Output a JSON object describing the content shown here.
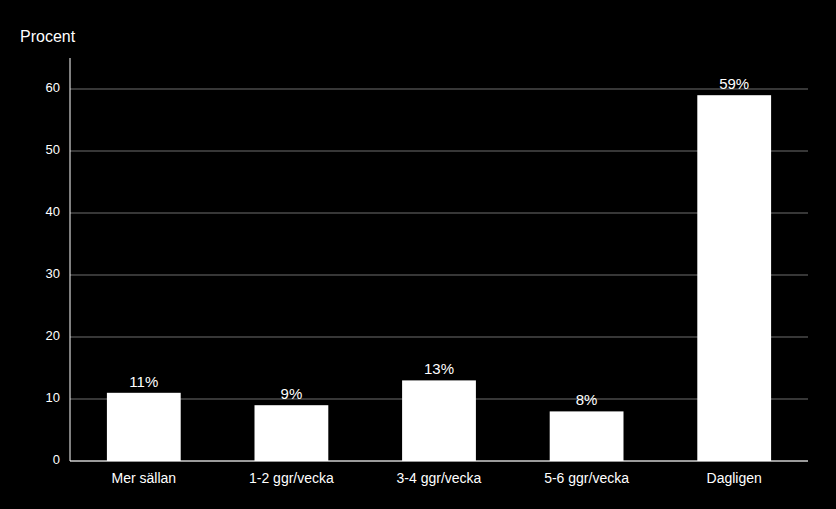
{
  "chart_data": {
    "type": "bar",
    "y_label": "Procent",
    "categories": [
      "Mer sällan",
      "1-2 ggr/vecka",
      "3-4 ggr/vecka",
      "5-6 ggr/vecka",
      "Dagligen"
    ],
    "values": [
      11,
      9,
      13,
      8,
      59
    ],
    "value_labels": [
      "11%",
      "9%",
      "13%",
      "8%",
      "59%"
    ],
    "data_labels": true,
    "color": "#ffffff",
    "ylim": [
      0,
      65
    ],
    "yticks": [
      0,
      10,
      20,
      30,
      40,
      50,
      60
    ],
    "grid": true
  }
}
